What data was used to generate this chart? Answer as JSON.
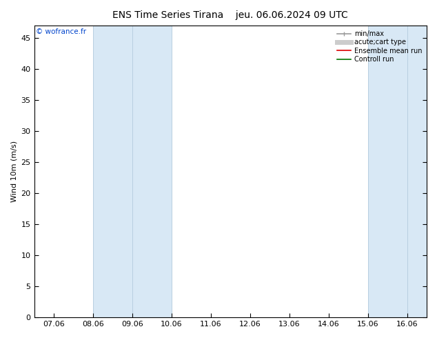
{
  "title_left": "ENS Time Series Tirana",
  "title_right": "jeu. 06.06.2024 09 UTC",
  "ylabel": "Wind 10m (m/s)",
  "ylim": [
    0,
    47
  ],
  "yticks": [
    0,
    5,
    10,
    15,
    20,
    25,
    30,
    35,
    40,
    45
  ],
  "xtick_labels": [
    "07.06",
    "08.06",
    "09.06",
    "10.06",
    "11.06",
    "12.06",
    "13.06",
    "14.06",
    "15.06",
    "16.06"
  ],
  "xmin": 0,
  "xmax": 9,
  "blue_bands": [
    [
      1,
      2
    ],
    [
      2,
      3
    ],
    [
      8,
      9
    ],
    [
      9,
      9.5
    ]
  ],
  "band_color": "#d8e8f5",
  "band_edge_color": "#b8cfe0",
  "background_color": "#ffffff",
  "watermark": "© wofrance.fr",
  "title_fontsize": 10,
  "axis_fontsize": 8,
  "tick_fontsize": 8,
  "legend_fontsize": 7
}
